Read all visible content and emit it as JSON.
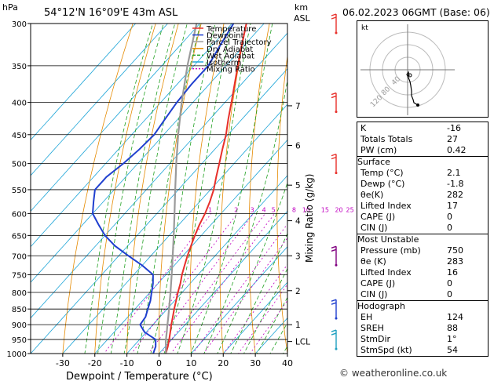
{
  "header": {
    "pressure_unit": "hPa",
    "location": "54°12'N  16°09'E  43m  ASL",
    "km_label": "km",
    "asl_label": "ASL",
    "datetime": "06.02.2023  06GMT  (Base: 06)"
  },
  "legend": [
    {
      "name": "Temperature",
      "color": "#e8302b"
    },
    {
      "name": "Dewpoint",
      "color": "#1f3fcf"
    },
    {
      "name": "Parcel Trajectory",
      "color": "#9a9a9a"
    },
    {
      "name": "Dry Adiabat",
      "color": "#e58a00"
    },
    {
      "name": "Wet Adiabat",
      "color": "#20a020"
    },
    {
      "name": "Isotherm",
      "color": "#20a6d8"
    },
    {
      "name": "Mixing Ratio",
      "color": "#c000c0"
    }
  ],
  "chart_data": {
    "type": "line",
    "title": "",
    "xlabel": "Dewpoint / Temperature (°C)",
    "ylabel": "hPa",
    "right_ylabel": "Mixing Ratio (g/kg)",
    "xlim": [
      -40,
      40
    ],
    "xticks": [
      -30,
      -20,
      -10,
      0,
      10,
      20,
      30,
      40
    ],
    "pressure_levels": [
      300,
      350,
      400,
      450,
      500,
      550,
      600,
      650,
      700,
      750,
      800,
      850,
      900,
      950,
      1000
    ],
    "altitude_km_ticks": [
      {
        "label": "7",
        "p": 405
      },
      {
        "label": "6",
        "p": 468
      },
      {
        "label": "5",
        "p": 541
      },
      {
        "label": "4",
        "p": 616
      },
      {
        "label": "3",
        "p": 700
      },
      {
        "label": "2",
        "p": 795
      },
      {
        "label": "1",
        "p": 900
      },
      {
        "label": "LCL",
        "p": 957
      }
    ],
    "mixing_ratio_labels": [
      "1",
      "2",
      "3",
      "4",
      "5",
      "8",
      "10",
      "15",
      "20",
      "25"
    ],
    "mixing_ratio_values": [
      1,
      2,
      3,
      4,
      5,
      8,
      10,
      15,
      20,
      25
    ],
    "series": [
      {
        "name": "Temperature",
        "color": "#e8302b",
        "p": [
          1000,
          975,
          950,
          925,
          900,
          875,
          850,
          825,
          800,
          775,
          750,
          725,
          700,
          675,
          650,
          625,
          600,
          575,
          550,
          525,
          500,
          475,
          450,
          425,
          400,
          375,
          350,
          325,
          300
        ],
        "t": [
          2.1,
          0.8,
          -0.8,
          -2.5,
          -4.3,
          -6.0,
          -7.8,
          -9.5,
          -11.3,
          -13.0,
          -15.0,
          -16.8,
          -18.6,
          -20.3,
          -22.0,
          -23.6,
          -25.0,
          -26.8,
          -29.0,
          -31.8,
          -34.6,
          -37.6,
          -40.6,
          -44.3,
          -48.0,
          -52.0,
          -56.3,
          -60.8,
          -65.5
        ]
      },
      {
        "name": "Dewpoint",
        "color": "#1f3fcf",
        "p": [
          1000,
          975,
          950,
          925,
          900,
          875,
          850,
          825,
          800,
          775,
          750,
          725,
          700,
          675,
          650,
          625,
          600,
          575,
          550,
          525,
          500,
          475,
          450,
          425,
          400,
          375,
          350,
          325,
          300
        ],
        "t": [
          -1.8,
          -3.0,
          -5.0,
          -10.5,
          -14.0,
          -14.5,
          -16.0,
          -17.5,
          -19.5,
          -21.5,
          -24.0,
          -30.0,
          -37.0,
          -44.0,
          -50.0,
          -55.0,
          -60.0,
          -63.0,
          -66.0,
          -66.0,
          -64.5,
          -63.5,
          -63.0,
          -64.0,
          -65.0,
          -65.5,
          -65.5,
          -67.5,
          -69.5
        ]
      },
      {
        "name": "Parcel Trajectory",
        "color": "#9a9a9a",
        "p": [
          1000,
          975,
          957,
          925,
          900,
          875,
          850,
          800,
          750,
          700,
          650,
          600,
          550,
          500,
          450,
          400,
          350,
          300
        ],
        "t": [
          2.1,
          0.2,
          -1.3,
          -3.6,
          -5.5,
          -7.4,
          -9.4,
          -13.6,
          -18.2,
          -23.2,
          -28.6,
          -34.5,
          -41.0,
          -48.0,
          -55.5,
          -63.5,
          -72.0,
          -81.0
        ]
      }
    ]
  },
  "stability": {
    "rows": [
      {
        "label": "K",
        "value": "-16"
      },
      {
        "label": "Totals Totals",
        "value": "27"
      },
      {
        "label": "PW (cm)",
        "value": "0.42"
      }
    ],
    "surface_title": "Surface",
    "surface": [
      {
        "label": "Temp (°C)",
        "value": "2.1"
      },
      {
        "label": "Dewp (°C)",
        "value": "-1.8"
      },
      {
        "label": "θe(K)",
        "value": "282"
      },
      {
        "label": "Lifted Index",
        "value": "17"
      },
      {
        "label": "CAPE (J)",
        "value": "0"
      },
      {
        "label": "CIN (J)",
        "value": "0"
      }
    ],
    "unstable_title": "Most Unstable",
    "unstable": [
      {
        "label": "Pressure (mb)",
        "value": "750"
      },
      {
        "label": "θe (K)",
        "value": "283"
      },
      {
        "label": "Lifted Index",
        "value": "16"
      },
      {
        "label": "CAPE (J)",
        "value": "0"
      },
      {
        "label": "CIN (J)",
        "value": "0"
      }
    ],
    "hodograph_title": "Hodograph",
    "hodograph": [
      {
        "label": "EH",
        "value": "124"
      },
      {
        "label": "SREH",
        "value": "88"
      },
      {
        "label": "StmDir",
        "value": "1°"
      },
      {
        "label": "StmSpd (kt)",
        "value": "54"
      }
    ]
  },
  "hodograph_plot": {
    "unit_label": "kt",
    "ring_labels": [
      "40",
      "80",
      "120"
    ]
  },
  "footer": "© weatheronline.co.uk"
}
